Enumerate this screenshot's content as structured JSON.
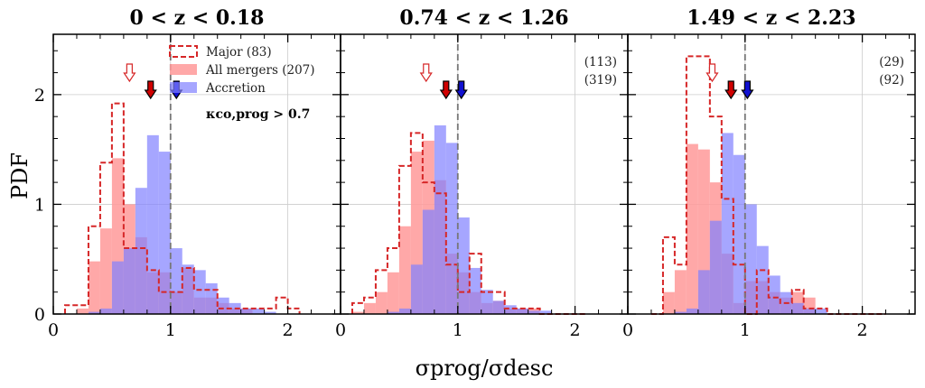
{
  "chart_data": {
    "type": "histogram",
    "ylabel": "PDF",
    "xlabel": "σprog/σdesc",
    "xlim": [
      0,
      2.45
    ],
    "ylim": [
      0,
      2.55
    ],
    "xticks": [
      0,
      1,
      2
    ],
    "yticks": [
      0,
      1,
      2
    ],
    "bin_width": 0.1,
    "legend": {
      "placement": "top-center",
      "entries": [
        {
          "key": "major",
          "label": "Major (83)",
          "style": "dashed-outline",
          "color": "#d62728"
        },
        {
          "key": "all_mergers",
          "label": "All mergers (207)",
          "style": "filled",
          "color": "#ff9999"
        },
        {
          "key": "accretion",
          "label": "Accretion",
          "style": "filled",
          "color": "#8080ff"
        }
      ]
    },
    "annotation": "κco,prog > 0.7",
    "colors": {
      "major_line": "#d62728",
      "all_mergers_fill": "#ff9999",
      "accretion_fill": "#8080ff",
      "grid": "#cccccc",
      "median_line": "#777777",
      "major_arrow": "#d62728",
      "all_mergers_arrow": "#d00000",
      "accretion_arrow": "#1010d0"
    },
    "panels": [
      {
        "title": "0 < z < 0.18",
        "counts": [],
        "edges_start": 0.1,
        "major": [
          0.08,
          0.08,
          0.8,
          1.38,
          1.92,
          0.6,
          0.6,
          0.4,
          0.2,
          0.2,
          0.42,
          0.22,
          0.22,
          0.05,
          0.05,
          0.05,
          0.05,
          0.05,
          0.15,
          0.05
        ],
        "all_mergers": [
          0.0,
          0.05,
          0.48,
          0.78,
          1.42,
          1.0,
          0.7,
          0.38,
          0.38,
          0.2,
          0.42,
          0.15,
          0.15,
          0.1,
          0.05,
          0.05,
          0.0,
          0.0,
          0.0,
          0.0
        ],
        "accretion": [
          0.0,
          0.0,
          0.02,
          0.05,
          0.48,
          0.6,
          1.15,
          1.63,
          1.48,
          0.6,
          0.45,
          0.4,
          0.28,
          0.15,
          0.1,
          0.05,
          0.05,
          0.02,
          0.0,
          0.0
        ],
        "medians": {
          "major": 0.65,
          "all_mergers": 0.83,
          "accretion": 1.05
        },
        "median_line_x": 1.0
      },
      {
        "title": "0.74 < z < 1.26",
        "counts": [
          "(113)",
          "(319)"
        ],
        "edges_start": 0.1,
        "major": [
          0.1,
          0.15,
          0.4,
          0.6,
          1.35,
          1.65,
          1.2,
          1.1,
          0.45,
          0.2,
          0.55,
          0.2,
          0.2,
          0.05,
          0.05,
          0.05,
          0.0,
          0.0,
          0.0,
          0.0
        ],
        "all_mergers": [
          0.02,
          0.1,
          0.2,
          0.38,
          0.8,
          1.48,
          1.58,
          1.22,
          0.55,
          0.38,
          0.2,
          0.1,
          0.12,
          0.05,
          0.05,
          0.05,
          0.0,
          0.0,
          0.0,
          0.0
        ],
        "accretion": [
          0.0,
          0.0,
          0.0,
          0.02,
          0.05,
          0.45,
          0.95,
          1.72,
          1.56,
          0.88,
          0.42,
          0.22,
          0.12,
          0.08,
          0.05,
          0.03,
          0.03,
          0.0,
          0.0,
          0.0
        ],
        "medians": {
          "major": 0.73,
          "all_mergers": 0.9,
          "accretion": 1.03
        },
        "median_line_x": 1.0
      },
      {
        "title": "1.49 < z < 2.23",
        "counts": [
          "(29)",
          "(92)"
        ],
        "edges_start": 0.2,
        "major": [
          0.0,
          0.7,
          0.45,
          2.35,
          2.35,
          1.8,
          1.05,
          0.45,
          0.0,
          0.4,
          0.15,
          0.1,
          0.22,
          0.05,
          0.05,
          0.0,
          0.0,
          0.0,
          0.0,
          0.0
        ],
        "all_mergers": [
          0.0,
          0.2,
          0.4,
          1.55,
          1.5,
          1.2,
          0.55,
          0.1,
          0.3,
          0.3,
          0.2,
          0.15,
          0.2,
          0.15,
          0.0,
          0.0,
          0.0,
          0.0,
          0.0,
          0.0
        ],
        "accretion": [
          0.0,
          0.0,
          0.02,
          0.05,
          0.4,
          0.85,
          1.65,
          1.45,
          1.0,
          0.62,
          0.35,
          0.2,
          0.1,
          0.05,
          0.05,
          0.0,
          0.0,
          0.0,
          0.0,
          0.0
        ],
        "medians": {
          "major": 0.72,
          "all_mergers": 0.88,
          "accretion": 1.02
        },
        "median_line_x": 1.0
      }
    ]
  }
}
